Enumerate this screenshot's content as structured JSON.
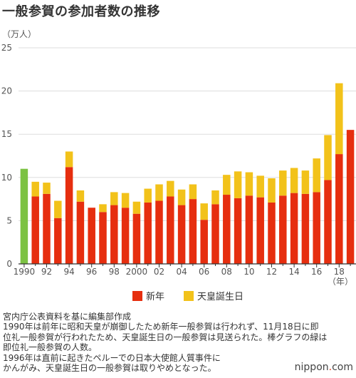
{
  "title": "一般参賀の参加者数の推移",
  "unit_label": "（万人）",
  "x_unit_label": "（年）",
  "colors": {
    "new_year": "#e62e0f",
    "birthday": "#f2c21a",
    "enthronement": "#7cc243",
    "grid": "#dddddd",
    "axis": "#333333"
  },
  "legend": [
    {
      "name": "新年",
      "color": "#e62e0f"
    },
    {
      "name": "天皇誕生日",
      "color": "#f2c21a"
    }
  ],
  "notes": [
    "宮内庁公表資料を基に編集部作成",
    "1990年は前年に昭和天皇が崩御したため新年一般参賀は行われず、11月18日に即",
    "位礼一般参賀が行われたため、天皇誕生日の一般参賀は見送られた。棒グラフの緑は",
    "即位礼一般参賀の人数。",
    "1996年は直前に起きたペルーでの日本大使館人質事件に",
    "かんがみ、天皇誕生日の一般参賀は取りやめとなった。"
  ],
  "brand": {
    "pre": "nippon",
    "dot": ".",
    "post": "com"
  },
  "chart_data": {
    "type": "bar",
    "stacked": true,
    "ylim": [
      0,
      25
    ],
    "yticks": [
      0,
      5,
      10,
      15,
      20,
      25
    ],
    "ylabel": "（万人）",
    "xlabel": "（年）",
    "grid": true,
    "legend_position": "bottom",
    "categories": [
      "1990",
      "1991",
      "1992",
      "1993",
      "1994",
      "1995",
      "1996",
      "1997",
      "1998",
      "1999",
      "2000",
      "2001",
      "2002",
      "2003",
      "2004",
      "2005",
      "2006",
      "2007",
      "2008",
      "2009",
      "2010",
      "2011",
      "2012",
      "2013",
      "2014",
      "2015",
      "2016",
      "2017",
      "2018",
      "2019"
    ],
    "xtick_labels": [
      "1990",
      "",
      "92",
      "",
      "94",
      "",
      "96",
      "",
      "98",
      "",
      "2000",
      "",
      "02",
      "",
      "04",
      "",
      "06",
      "",
      "08",
      "",
      "10",
      "",
      "12",
      "",
      "14",
      "",
      "16",
      "",
      "18",
      ""
    ],
    "series": [
      {
        "name": "即位礼一般参賀",
        "color": "#7cc243",
        "values": [
          11.0,
          0,
          0,
          0,
          0,
          0,
          0,
          0,
          0,
          0,
          0,
          0,
          0,
          0,
          0,
          0,
          0,
          0,
          0,
          0,
          0,
          0,
          0,
          0,
          0,
          0,
          0,
          0,
          0,
          0
        ]
      },
      {
        "name": "新年",
        "color": "#e62e0f",
        "values": [
          0,
          7.8,
          8.1,
          5.3,
          11.2,
          7.2,
          6.5,
          6.0,
          6.8,
          6.5,
          5.8,
          7.1,
          7.3,
          7.8,
          6.8,
          7.5,
          5.1,
          6.9,
          8.0,
          7.6,
          7.9,
          7.7,
          7.1,
          7.9,
          8.2,
          8.1,
          8.3,
          9.7,
          12.7,
          15.5
        ]
      },
      {
        "name": "天皇誕生日",
        "color": "#f2c21a",
        "values": [
          0,
          1.7,
          1.3,
          2.0,
          1.8,
          1.3,
          0,
          0.9,
          1.5,
          1.7,
          1.4,
          1.6,
          1.9,
          1.8,
          1.8,
          1.7,
          1.9,
          1.6,
          2.3,
          3.1,
          2.7,
          2.5,
          2.8,
          2.9,
          2.9,
          2.7,
          3.9,
          5.2,
          8.2,
          0
        ]
      }
    ]
  }
}
